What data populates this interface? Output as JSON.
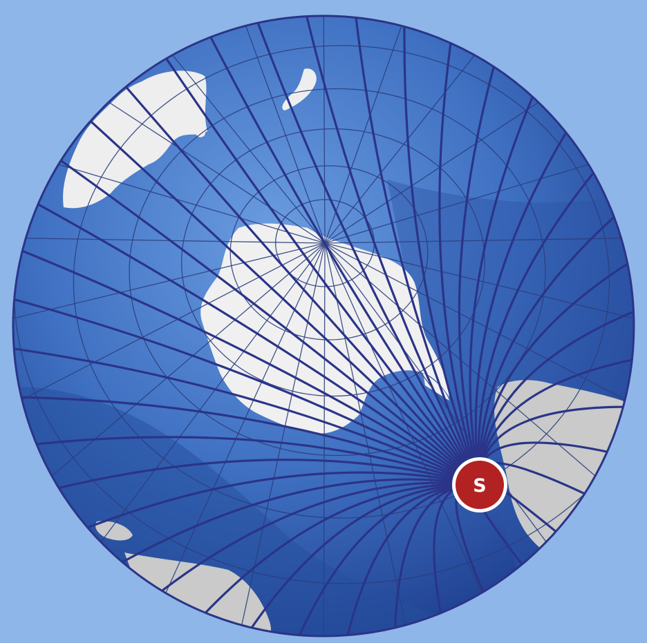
{
  "map": {
    "projection": "azimuthal",
    "colors": {
      "background": "#8eb6e8",
      "ocean_light": "#5a8fd6",
      "ocean_mid": "#3f70c2",
      "ocean_dark": "#21469a",
      "ice": "#f2f2f2",
      "land": "#c7c9c8",
      "grid": "#2c3f7e",
      "rays": "#2b3488",
      "marker_fill": "#b22222",
      "marker_ring": "#ffffff"
    },
    "marker": {
      "label": "S",
      "icon": "point-marker-icon"
    }
  }
}
